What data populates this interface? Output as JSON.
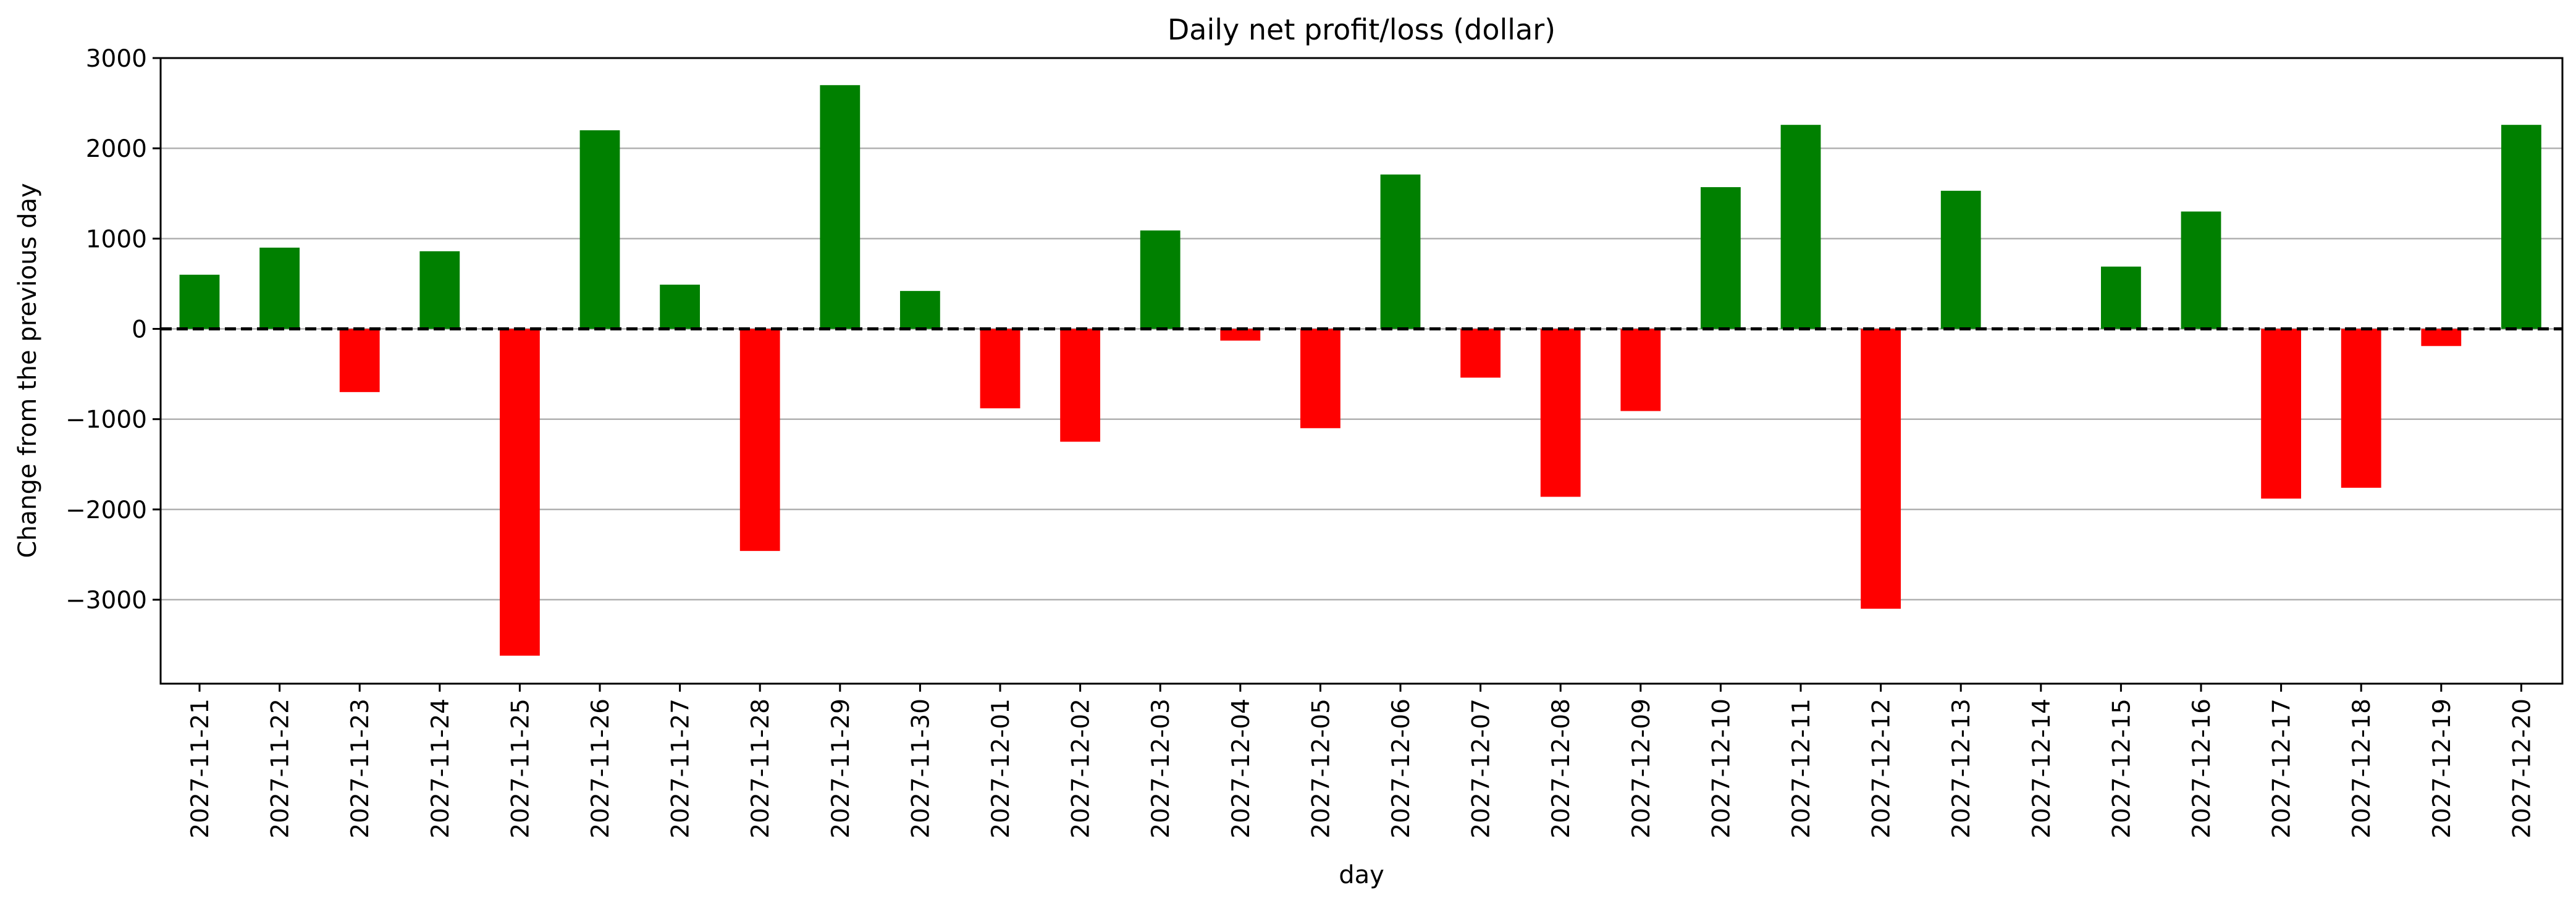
{
  "chart_data": {
    "type": "bar",
    "title": "Daily net profit/loss (dollar)",
    "xlabel": "day",
    "ylabel": "Change from the previous day",
    "categories": [
      "2027-11-21",
      "2027-11-22",
      "2027-11-23",
      "2027-11-24",
      "2027-11-25",
      "2027-11-26",
      "2027-11-27",
      "2027-11-28",
      "2027-11-29",
      "2027-11-30",
      "2027-12-01",
      "2027-12-02",
      "2027-12-03",
      "2027-12-04",
      "2027-12-05",
      "2027-12-06",
      "2027-12-07",
      "2027-12-08",
      "2027-12-09",
      "2027-12-10",
      "2027-12-11",
      "2027-12-12",
      "2027-12-13",
      "2027-12-14",
      "2027-12-15",
      "2027-12-16",
      "2027-12-17",
      "2027-12-18",
      "2027-12-19",
      "2027-12-20"
    ],
    "values": [
      600,
      900,
      -700,
      860,
      -3620,
      2200,
      490,
      -2460,
      2700,
      420,
      -880,
      -1250,
      1090,
      -130,
      -1100,
      1710,
      -540,
      -1860,
      -910,
      1570,
      2260,
      -3100,
      1530,
      0,
      690,
      1300,
      -1880,
      -1760,
      -190,
      2260
    ],
    "ylim": [
      -3930,
      3000
    ],
    "yticks": [
      3000,
      2000,
      1000,
      0,
      -1000,
      -2000,
      -3000
    ],
    "ytick_labels": [
      "3000",
      "2000",
      "1000",
      "0",
      "−1000",
      "−2000",
      "−3000"
    ],
    "grid": "y",
    "zero_line": "dashed",
    "colors": {
      "positive": "#008000",
      "negative": "#ff0000",
      "grid": "#b0b0b0",
      "axis": "#000000"
    }
  }
}
